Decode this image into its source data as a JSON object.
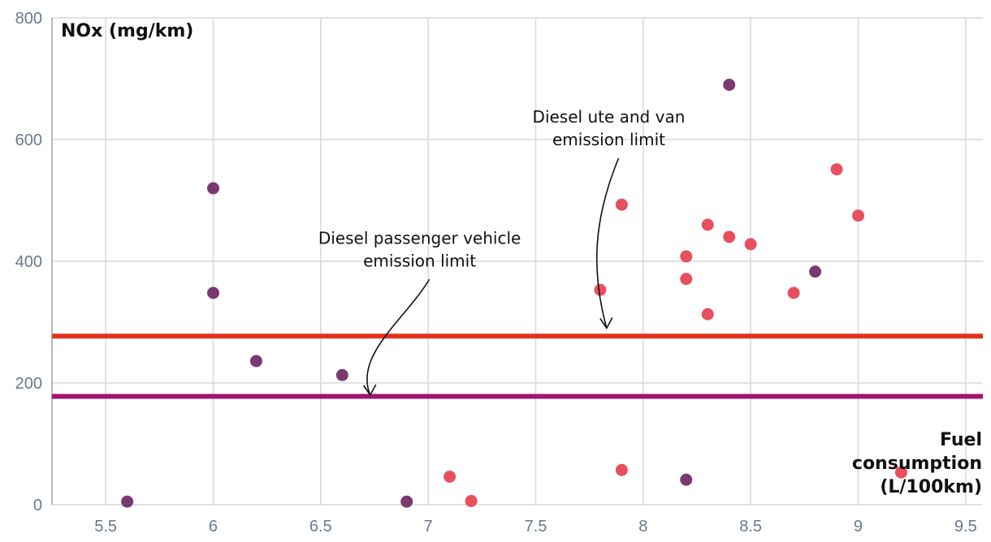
{
  "chart_data": {
    "type": "scatter",
    "ylabel": "NOx (mg/km)",
    "xlabel": [
      "Fuel",
      "consumption",
      "(L/100km)"
    ],
    "xlim": [
      5.25,
      9.58
    ],
    "ylim": [
      0,
      800
    ],
    "xticks": [
      "5.5",
      "6",
      "6.5",
      "7",
      "7.5",
      "8",
      "8.5",
      "9",
      "9.5"
    ],
    "yticks": [
      "0",
      "200",
      "400",
      "600",
      "800"
    ],
    "grid": true,
    "series": [
      {
        "name": "purple",
        "color": "#7b3a6e",
        "points": [
          {
            "x": 5.6,
            "y": 5
          },
          {
            "x": 6.0,
            "y": 520
          },
          {
            "x": 6.0,
            "y": 348
          },
          {
            "x": 6.2,
            "y": 236
          },
          {
            "x": 6.6,
            "y": 213
          },
          {
            "x": 6.9,
            "y": 5
          },
          {
            "x": 8.2,
            "y": 41
          },
          {
            "x": 8.4,
            "y": 690
          },
          {
            "x": 8.8,
            "y": 383
          }
        ]
      },
      {
        "name": "red",
        "color": "#e8505f",
        "points": [
          {
            "x": 7.1,
            "y": 46
          },
          {
            "x": 7.2,
            "y": 6
          },
          {
            "x": 7.8,
            "y": 353
          },
          {
            "x": 7.9,
            "y": 493
          },
          {
            "x": 7.9,
            "y": 57
          },
          {
            "x": 8.2,
            "y": 408
          },
          {
            "x": 8.2,
            "y": 371
          },
          {
            "x": 8.3,
            "y": 460
          },
          {
            "x": 8.3,
            "y": 313
          },
          {
            "x": 8.4,
            "y": 440
          },
          {
            "x": 8.5,
            "y": 428
          },
          {
            "x": 8.7,
            "y": 348
          },
          {
            "x": 8.9,
            "y": 551
          },
          {
            "x": 9.0,
            "y": 475
          },
          {
            "x": 9.2,
            "y": 53
          }
        ]
      }
    ],
    "reference_lines": [
      {
        "name": "Diesel ute and van emission limit",
        "y": 277,
        "color": "#e0321e"
      },
      {
        "name": "Diesel passenger vehicle emission limit",
        "y": 178,
        "color": "#a3146d"
      }
    ],
    "annotations": [
      {
        "lines": [
          "Diesel ute and van",
          "emission limit"
        ],
        "x": 7.84,
        "y": 628,
        "target_x": 7.83,
        "target_y": 290
      },
      {
        "lines": [
          "Diesel passenger vehicle",
          "emission limit"
        ],
        "x": 6.96,
        "y": 429,
        "target_x": 6.73,
        "target_y": 180
      }
    ]
  }
}
